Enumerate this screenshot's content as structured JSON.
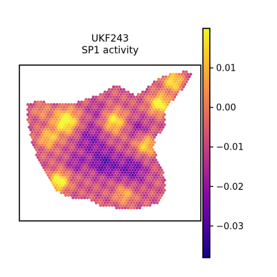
{
  "chart_data": {
    "type": "heatmap",
    "subtype": "spatial hexbin",
    "title": [
      "UKF243",
      "SP1 activity"
    ],
    "colormap": "plasma",
    "colorbar": {
      "min": -0.038,
      "max": 0.02,
      "ticks": [
        0.01,
        0.0,
        -0.01,
        -0.02,
        -0.03
      ],
      "tick_labels": [
        "0.01",
        "0.00",
        "−0.01",
        "−0.02",
        "−0.03"
      ]
    },
    "colors": {
      "frame": "#000000",
      "background": "#ffffff",
      "plasma_stops": [
        "#0d0887",
        "#5402a3",
        "#8b0aa5",
        "#b83289",
        "#db5c68",
        "#f48849",
        "#febd2a",
        "#f0f921"
      ]
    }
  }
}
